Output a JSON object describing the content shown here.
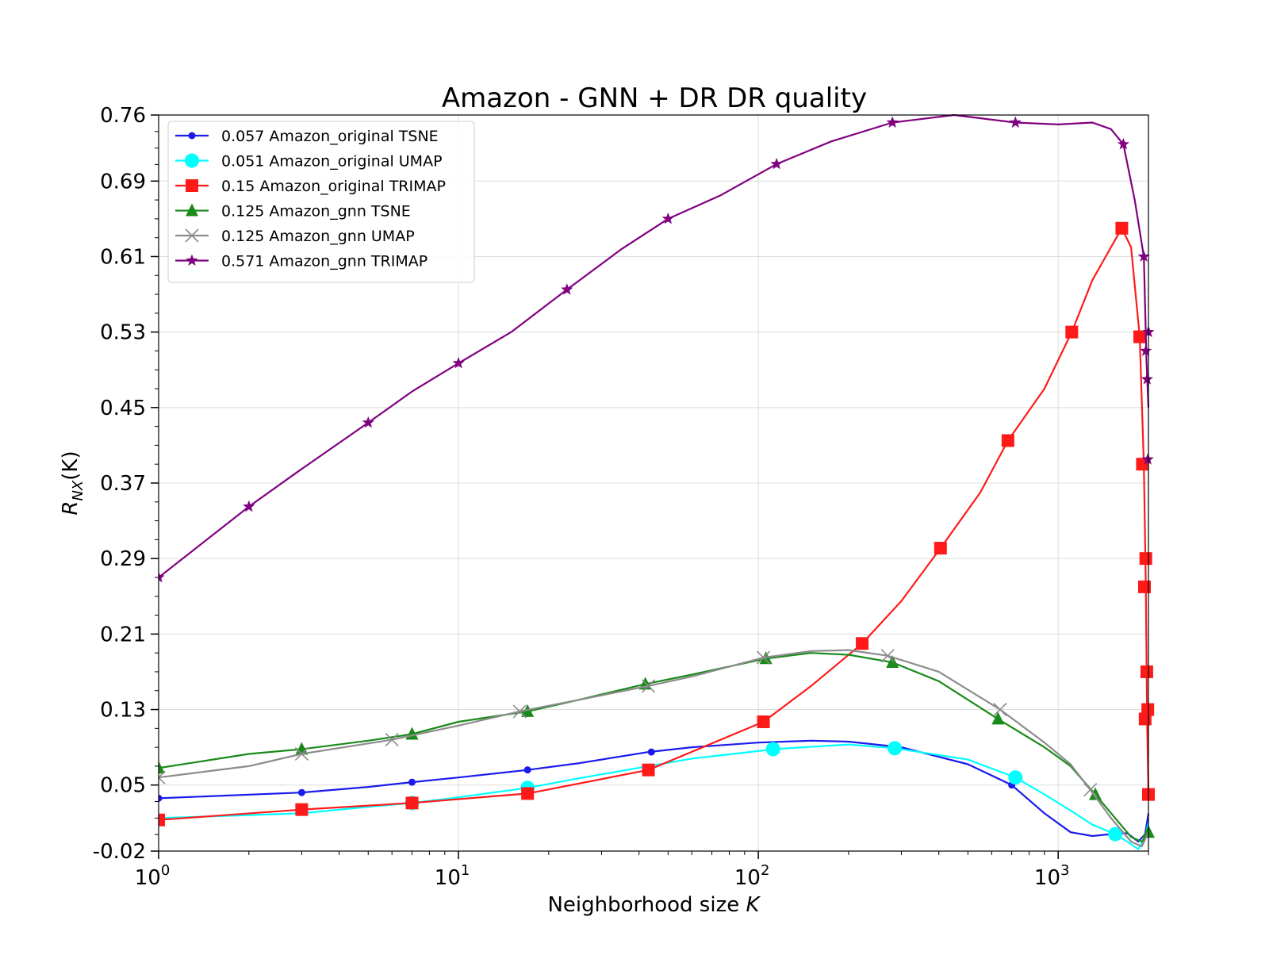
{
  "chart_data": {
    "type": "line",
    "title": "Amazon - GNN + DR DR quality",
    "xlabel": "Neighborhood size K",
    "xlabel_parts": [
      "Neighborhood size ",
      "K"
    ],
    "ylabel": "R_NX(K)",
    "ylabel_parts": [
      "R",
      "NX",
      "(K)"
    ],
    "xscale": "log",
    "xlim": [
      1,
      2000
    ],
    "ylim": [
      -0.02,
      0.76
    ],
    "x_ticks": [
      1,
      10,
      100,
      1000
    ],
    "x_tick_labels": [
      {
        "base": "10",
        "exp": "0"
      },
      {
        "base": "10",
        "exp": "1"
      },
      {
        "base": "10",
        "exp": "2"
      },
      {
        "base": "10",
        "exp": "3"
      }
    ],
    "y_ticks": [
      -0.02,
      0.05,
      0.13,
      0.21,
      0.29,
      0.37,
      0.45,
      0.53,
      0.61,
      0.69,
      0.76
    ],
    "y_tick_labels": [
      "-0.02",
      "0.05",
      "0.13",
      "0.21",
      "0.29",
      "0.37",
      "0.45",
      "0.53",
      "0.61",
      "0.69",
      "0.76"
    ],
    "grid": true,
    "legend_position": "top-left",
    "series": [
      {
        "name": "0.057 Amazon_original TSNE",
        "color": "#1a1aee",
        "marker": "circle-small",
        "x": [
          1,
          3,
          5,
          7,
          10,
          17,
          25,
          43,
          60,
          100,
          150,
          200,
          300,
          500,
          700,
          900,
          1100,
          1300,
          1500,
          1700,
          1850,
          1950,
          2000
        ],
        "y": [
          0.036,
          0.042,
          0.048,
          0.053,
          0.058,
          0.066,
          0.073,
          0.085,
          0.09,
          0.095,
          0.097,
          0.096,
          0.09,
          0.072,
          0.05,
          0.02,
          0.0,
          -0.004,
          -0.002,
          -0.001,
          -0.01,
          -0.002,
          0.02
        ],
        "markers_x": [
          1,
          3,
          7,
          17,
          44,
          700
        ],
        "markers_y": [
          0.036,
          0.042,
          0.053,
          0.066,
          0.085,
          0.05
        ]
      },
      {
        "name": "0.051 Amazon_original UMAP",
        "color": "#00ffff",
        "marker": "circle-large",
        "x": [
          1,
          3,
          5,
          7,
          10,
          17,
          25,
          43,
          60,
          100,
          112,
          200,
          285,
          500,
          720,
          900,
          1100,
          1300,
          1550,
          1700,
          1850,
          1950,
          2000
        ],
        "y": [
          0.015,
          0.02,
          0.027,
          0.031,
          0.037,
          0.047,
          0.057,
          0.07,
          0.078,
          0.086,
          0.088,
          0.093,
          0.089,
          0.077,
          0.058,
          0.04,
          0.023,
          0.008,
          -0.002,
          -0.01,
          -0.018,
          -0.005,
          0.01
        ],
        "markers_x": [
          7,
          17,
          112,
          285,
          720,
          1550
        ],
        "markers_y": [
          0.031,
          0.047,
          0.088,
          0.089,
          0.058,
          -0.002
        ]
      },
      {
        "name": "0.15 Amazon_original TRIMAP",
        "color": "#ff1a1a",
        "marker": "square",
        "x": [
          1,
          3,
          7,
          17,
          43,
          104,
          150,
          222,
          300,
          405,
          550,
          680,
          900,
          1110,
          1300,
          1500,
          1630,
          1750,
          1870,
          1930,
          1960,
          1980,
          2000
        ],
        "y": [
          0.013,
          0.024,
          0.031,
          0.041,
          0.066,
          0.117,
          0.155,
          0.2,
          0.245,
          0.301,
          0.36,
          0.415,
          0.47,
          0.53,
          0.585,
          0.62,
          0.64,
          0.62,
          0.525,
          0.39,
          0.26,
          0.12,
          0.04
        ],
        "markers_x": [
          1,
          3,
          7,
          17,
          43,
          104,
          222,
          405,
          680,
          1110,
          1630,
          1870,
          1910,
          1940,
          1950,
          1960,
          1975,
          1990,
          2000
        ],
        "markers_y": [
          0.013,
          0.024,
          0.031,
          0.041,
          0.066,
          0.117,
          0.2,
          0.301,
          0.415,
          0.53,
          0.64,
          0.525,
          0.39,
          0.26,
          0.12,
          0.29,
          0.17,
          0.13,
          0.04
        ]
      },
      {
        "name": "0.125 Amazon_gnn TSNE",
        "color": "#1a8a1a",
        "marker": "triangle",
        "x": [
          1,
          2,
          3,
          5,
          7,
          10,
          17,
          25,
          42,
          60,
          106,
          150,
          200,
          280,
          400,
          630,
          900,
          1100,
          1330,
          1550,
          1750,
          1900,
          2000
        ],
        "y": [
          0.068,
          0.083,
          0.088,
          0.097,
          0.104,
          0.117,
          0.128,
          0.14,
          0.157,
          0.167,
          0.184,
          0.19,
          0.188,
          0.18,
          0.16,
          0.12,
          0.09,
          0.07,
          0.04,
          0.015,
          -0.005,
          -0.01,
          0.0
        ],
        "markers_x": [
          1,
          3,
          7,
          17,
          42,
          106,
          280,
          630,
          1330,
          2000
        ],
        "markers_y": [
          0.068,
          0.088,
          0.104,
          0.128,
          0.157,
          0.184,
          0.18,
          0.12,
          0.04,
          0.0
        ]
      },
      {
        "name": "0.125 Amazon_gnn UMAP",
        "color": "#8c8c8c",
        "marker": "x",
        "x": [
          1,
          2,
          3,
          6,
          10,
          16,
          25,
          43,
          60,
          104,
          150,
          200,
          270,
          400,
          640,
          900,
          1100,
          1280,
          1500,
          1750,
          1900,
          2000
        ],
        "y": [
          0.058,
          0.07,
          0.083,
          0.098,
          0.113,
          0.128,
          0.14,
          0.155,
          0.165,
          0.185,
          0.192,
          0.193,
          0.187,
          0.17,
          0.13,
          0.095,
          0.072,
          0.045,
          0.015,
          -0.01,
          -0.015,
          0.0
        ],
        "markers_x": [
          1,
          3,
          6,
          16,
          43,
          104,
          270,
          640,
          1280
        ],
        "markers_y": [
          0.058,
          0.083,
          0.098,
          0.128,
          0.155,
          0.185,
          0.187,
          0.13,
          0.045
        ]
      },
      {
        "name": "0.571 Amazon_gnn TRIMAP",
        "color": "#800080",
        "marker": "star",
        "x": [
          1,
          2,
          3,
          5,
          7,
          10,
          15,
          23,
          35,
          50,
          75,
          115,
          175,
          280,
          450,
          720,
          1000,
          1300,
          1500,
          1650,
          1800,
          1930,
          1970,
          2000
        ],
        "y": [
          0.27,
          0.345,
          0.385,
          0.434,
          0.467,
          0.497,
          0.53,
          0.575,
          0.618,
          0.65,
          0.675,
          0.708,
          0.732,
          0.752,
          0.76,
          0.752,
          0.75,
          0.752,
          0.745,
          0.729,
          0.67,
          0.61,
          0.5,
          0.45
        ],
        "markers_x": [
          1,
          2,
          5,
          10,
          23,
          50,
          115,
          280,
          720,
          1650,
          1930,
          1960,
          1980,
          1990,
          2000
        ],
        "markers_y": [
          0.27,
          0.345,
          0.434,
          0.497,
          0.575,
          0.65,
          0.708,
          0.752,
          0.752,
          0.729,
          0.61,
          0.51,
          0.48,
          0.395,
          0.53
        ]
      }
    ]
  }
}
